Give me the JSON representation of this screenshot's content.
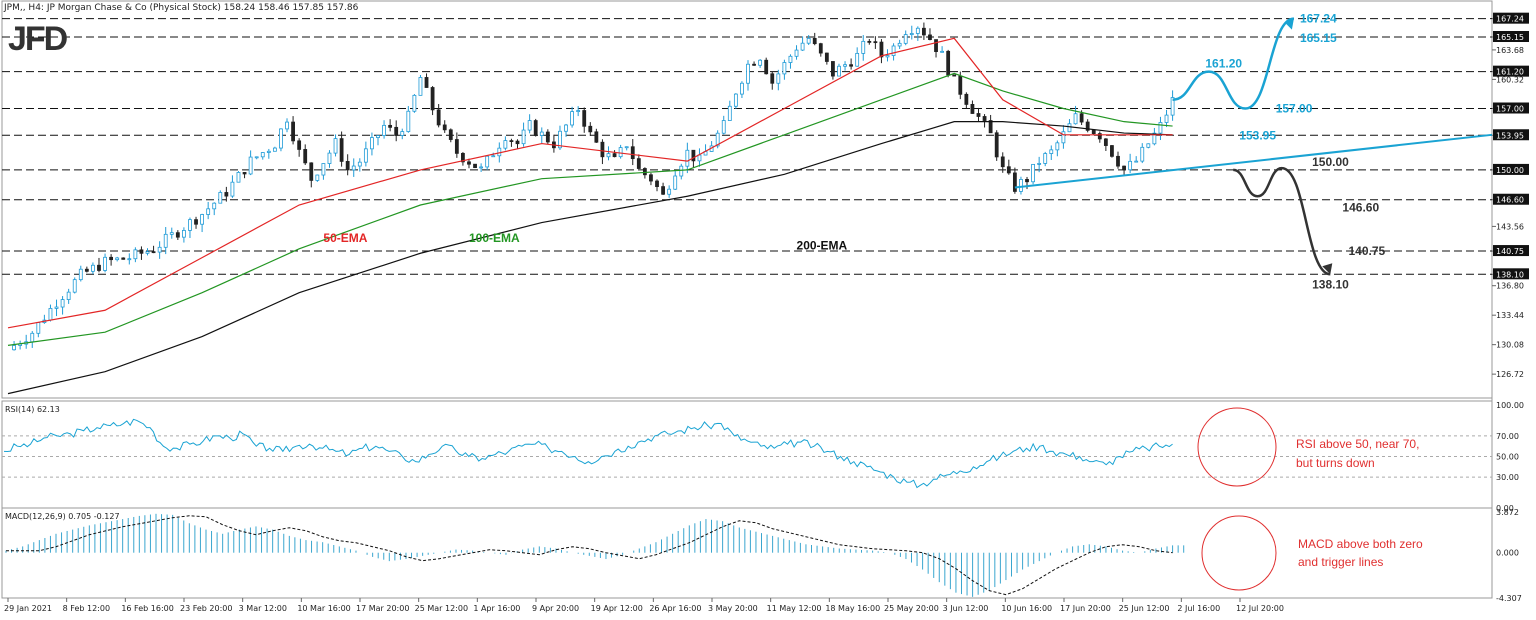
{
  "header": {
    "symbol_line": "JPM,, H4:  JP Morgan Chase & Co (Physical Stock)  158.24 158.46 157.85 157.86",
    "logo": "JFD"
  },
  "colors": {
    "price_up": "#1f9bd7",
    "price_down": "#222222",
    "ema50": "#e32626",
    "ema100": "#239623",
    "ema200": "#111111",
    "bull_path": "#1aa3d3",
    "bear_path": "#333333",
    "rsi": "#1aa3d3",
    "macd_hist": "#3aa6cf",
    "annotation_red": "#e03030"
  },
  "price_axis": {
    "labels": [
      "167.24",
      "165.15",
      "163.68",
      "161.20",
      "160.32",
      "157.00",
      "153.95",
      "150.00",
      "146.60",
      "143.56",
      "140.75",
      "138.10",
      "136.80",
      "133.44",
      "130.08",
      "126.72"
    ]
  },
  "price_levels": [
    "167.24",
    "165.15",
    "161.20",
    "157.00",
    "153.95",
    "150.00",
    "146.60",
    "140.75",
    "138.10"
  ],
  "ema_labels": {
    "ema50": "50-EMA",
    "ema100": "100-EMA",
    "ema200": "200-EMA"
  },
  "bull_targets": [
    "167.24",
    "165.15",
    "161.20",
    "157.00",
    "153.95"
  ],
  "bear_targets": [
    "150.00",
    "146.60",
    "140.75",
    "138.10"
  ],
  "rsi": {
    "title": "RSI(14) 62.13",
    "axis": [
      "100.00",
      "70.00",
      "50.00",
      "30.00",
      "0.00"
    ],
    "note_line1": "RSI above 50, near 70,",
    "note_line2": "but turns down"
  },
  "macd": {
    "title": "MACD(12,26,9) 0.705 -0.127",
    "axis": [
      "3.872",
      "0.000",
      "-4.307"
    ],
    "note_line1": "MACD above both zero",
    "note_line2": "and trigger lines"
  },
  "time_axis": [
    "29 Jan 2021",
    "8 Feb 12:00",
    "16 Feb 16:00",
    "23 Feb 20:00",
    "3 Mar 12:00",
    "10 Mar 16:00",
    "17 Mar 20:00",
    "25 Mar 12:00",
    "1 Apr 16:00",
    "9 Apr 20:00",
    "19 Apr 12:00",
    "26 Apr 16:00",
    "3 May 20:00",
    "11 May 12:00",
    "18 May 16:00",
    "25 May 20:00",
    "3 Jun 12:00",
    "10 Jun 16:00",
    "17 Jun 20:00",
    "25 Jun 12:00",
    "2 Jul 16:00",
    "12 Jul 20:00"
  ],
  "chart_data": {
    "type": "candlestick",
    "instrument": "JP Morgan Chase & Co (Physical Stock)",
    "timeframe": "H4",
    "ohlc_last": {
      "open": 158.24,
      "high": 158.46,
      "low": 157.85,
      "close": 157.86
    },
    "ylim": [
      124,
      168
    ],
    "price_path": [
      [
        0,
        129.5
      ],
      [
        2,
        131.5
      ],
      [
        4,
        135
      ],
      [
        6,
        138
      ],
      [
        8,
        139.5
      ],
      [
        10,
        140
      ],
      [
        12,
        141
      ],
      [
        14,
        143
      ],
      [
        16,
        145
      ],
      [
        18,
        147.5
      ],
      [
        20,
        151
      ],
      [
        22,
        153
      ],
      [
        23,
        156
      ],
      [
        24,
        152
      ],
      [
        25,
        149
      ],
      [
        26,
        151
      ],
      [
        27,
        153
      ],
      [
        28,
        150
      ],
      [
        29,
        151
      ],
      [
        30,
        153
      ],
      [
        31,
        155
      ],
      [
        32,
        154
      ],
      [
        33,
        156
      ],
      [
        34,
        160.5
      ],
      [
        35,
        157
      ],
      [
        36,
        154
      ],
      [
        37,
        152
      ],
      [
        38,
        151
      ],
      [
        39,
        150
      ],
      [
        40,
        152
      ],
      [
        41,
        154
      ],
      [
        42,
        153
      ],
      [
        43,
        155
      ],
      [
        44,
        154
      ],
      [
        45,
        153
      ],
      [
        46,
        155
      ],
      [
        47,
        157
      ],
      [
        48,
        154
      ],
      [
        49,
        152
      ],
      [
        50,
        151
      ],
      [
        51,
        153
      ],
      [
        52,
        150
      ],
      [
        53,
        149
      ],
      [
        54,
        147
      ],
      [
        55,
        150
      ],
      [
        56,
        152
      ],
      [
        57,
        151
      ],
      [
        58,
        153
      ],
      [
        59,
        155
      ],
      [
        60,
        159
      ],
      [
        61,
        162
      ],
      [
        62,
        163
      ],
      [
        63,
        160
      ],
      [
        64,
        162
      ],
      [
        65,
        164
      ],
      [
        66,
        165
      ],
      [
        67,
        163
      ],
      [
        68,
        161
      ],
      [
        69,
        162
      ],
      [
        70,
        163
      ],
      [
        71,
        165
      ],
      [
        72,
        163
      ],
      [
        73,
        164
      ],
      [
        74,
        166
      ],
      [
        75,
        166.5
      ],
      [
        76,
        165
      ],
      [
        77,
        163
      ],
      [
        78,
        160
      ],
      [
        79,
        158
      ],
      [
        80,
        156
      ],
      [
        81,
        154
      ],
      [
        82,
        150
      ],
      [
        83,
        148
      ],
      [
        84,
        149
      ],
      [
        85,
        151
      ],
      [
        86,
        152
      ],
      [
        87,
        154
      ],
      [
        88,
        156
      ],
      [
        89,
        155
      ],
      [
        90,
        154
      ],
      [
        91,
        152
      ],
      [
        92,
        150
      ],
      [
        93,
        151
      ],
      [
        94,
        153
      ],
      [
        95,
        155
      ],
      [
        96,
        157.9
      ]
    ],
    "ema50_path": [
      [
        0,
        132
      ],
      [
        8,
        134
      ],
      [
        16,
        140
      ],
      [
        24,
        146
      ],
      [
        34,
        150
      ],
      [
        44,
        153
      ],
      [
        56,
        151
      ],
      [
        64,
        157
      ],
      [
        72,
        163
      ],
      [
        78,
        165
      ],
      [
        82,
        158
      ],
      [
        87,
        154
      ],
      [
        92,
        154
      ],
      [
        96,
        154
      ]
    ],
    "ema100_path": [
      [
        0,
        130
      ],
      [
        8,
        131.5
      ],
      [
        16,
        136
      ],
      [
        24,
        141
      ],
      [
        34,
        146
      ],
      [
        44,
        149
      ],
      [
        56,
        150
      ],
      [
        64,
        154
      ],
      [
        72,
        158
      ],
      [
        78,
        161
      ],
      [
        82,
        159
      ],
      [
        87,
        157
      ],
      [
        92,
        155.5
      ],
      [
        96,
        155
      ]
    ],
    "ema200_path": [
      [
        0,
        124.5
      ],
      [
        8,
        127
      ],
      [
        16,
        131
      ],
      [
        24,
        136
      ],
      [
        34,
        140.5
      ],
      [
        44,
        144
      ],
      [
        56,
        147
      ],
      [
        64,
        149.5
      ],
      [
        72,
        153
      ],
      [
        78,
        155.5
      ],
      [
        82,
        155.5
      ],
      [
        87,
        155
      ],
      [
        92,
        154.2
      ],
      [
        96,
        154
      ]
    ],
    "support_trendline": [
      [
        83,
        148
      ],
      [
        121,
        154
      ]
    ],
    "scenarios": {
      "bullish": {
        "points": [
          [
            96,
            158
          ],
          [
            99,
            161.2
          ],
          [
            102,
            157
          ],
          [
            106,
            167.24
          ]
        ],
        "targets": [
          161.2,
          157.0,
          165.15,
          167.24
        ]
      },
      "bearish": {
        "points": [
          [
            101,
            150
          ],
          [
            103,
            147
          ],
          [
            105,
            150.2
          ],
          [
            109,
            138.1
          ]
        ],
        "targets": [
          150.0,
          146.6,
          140.75,
          138.1
        ]
      }
    },
    "rsi_series": [
      55,
      60,
      62,
      68,
      70,
      72,
      75,
      78,
      80,
      82,
      85,
      78,
      60,
      58,
      62,
      65,
      70,
      68,
      72,
      60,
      58,
      55,
      60,
      62,
      58,
      55,
      52,
      58,
      60,
      55,
      50,
      45,
      52,
      60,
      56,
      50,
      48,
      52,
      55,
      60,
      62,
      58,
      55,
      50,
      45,
      50,
      55,
      60,
      65,
      70,
      72,
      75,
      78,
      80,
      82,
      70,
      65,
      60,
      58,
      62,
      64,
      60,
      55,
      50,
      45,
      40,
      35,
      30,
      25,
      22,
      28,
      32,
      36,
      40,
      45,
      50,
      55,
      58,
      60,
      55,
      52,
      50,
      45,
      42,
      50,
      55,
      58,
      60,
      62
    ],
    "rsi_current": 62.13,
    "macd_hist": [
      0.2,
      0.6,
      1.2,
      1.8,
      2.2,
      2.6,
      2.9,
      3.2,
      3.5,
      3.7,
      3.6,
      2.8,
      2.2,
      1.8,
      2.2,
      2.5,
      2.2,
      1.6,
      1.2,
      1.0,
      0.6,
      0.2,
      -0.4,
      -0.8,
      -0.6,
      -0.3,
      0.0,
      0.3,
      0.2,
      0.0,
      -0.2,
      0.3,
      0.6,
      0.4,
      0.0,
      -0.3,
      -0.6,
      -0.2,
      0.4,
      1.0,
      1.8,
      2.6,
      3.2,
      3.0,
      2.4,
      2.0,
      1.6,
      1.2,
      0.8,
      0.6,
      0.4,
      0.3,
      0.2,
      0.0,
      -0.6,
      -1.6,
      -2.8,
      -3.8,
      -4.2,
      -3.6,
      -2.6,
      -1.6,
      -0.8,
      0.0,
      0.6,
      0.8,
      0.6,
      0.2,
      0.0,
      0.4,
      0.7
    ],
    "macd_values": {
      "macd": 0.705,
      "signal": -0.127
    },
    "ylim_rsi": [
      0,
      100
    ],
    "ylim_macd": [
      -4.307,
      3.872
    ]
  }
}
